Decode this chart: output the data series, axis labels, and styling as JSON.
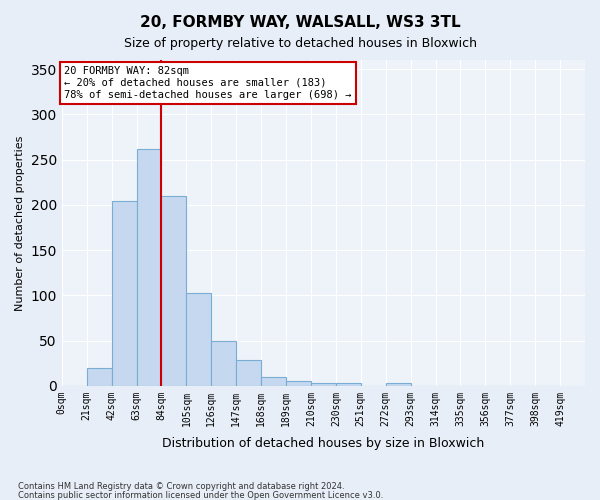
{
  "title1": "20, FORMBY WAY, WALSALL, WS3 3TL",
  "title2": "Size of property relative to detached houses in Bloxwich",
  "xlabel": "Distribution of detached houses by size in Bloxwich",
  "ylabel": "Number of detached properties",
  "bin_labels": [
    "0sqm",
    "21sqm",
    "42sqm",
    "63sqm",
    "84sqm",
    "105sqm",
    "126sqm",
    "147sqm",
    "168sqm",
    "189sqm",
    "210sqm",
    "230sqm",
    "251sqm",
    "272sqm",
    "293sqm",
    "314sqm",
    "335sqm",
    "356sqm",
    "377sqm",
    "398sqm",
    "419sqm"
  ],
  "bar_values": [
    0,
    20,
    204,
    262,
    210,
    103,
    50,
    28,
    10,
    5,
    3,
    3,
    0,
    3,
    0,
    0,
    0,
    0,
    0,
    0
  ],
  "bar_color": "#c5d8f0",
  "bar_edge_color": "#7aadd4",
  "vline_x": 84,
  "vline_color": "#cc0000",
  "annotation_text": "20 FORMBY WAY: 82sqm\n← 20% of detached houses are smaller (183)\n78% of semi-detached houses are larger (698) →",
  "annotation_box_color": "#ffffff",
  "annotation_box_edge": "#cc0000",
  "bg_color": "#e8eef7",
  "plot_bg_color": "#eef2f9",
  "footer1": "Contains HM Land Registry data © Crown copyright and database right 2024.",
  "footer2": "Contains public sector information licensed under the Open Government Licence v3.0.",
  "ylim": [
    0,
    360
  ],
  "yticks": [
    0,
    50,
    100,
    150,
    200,
    250,
    300,
    350
  ],
  "bin_width": 21
}
